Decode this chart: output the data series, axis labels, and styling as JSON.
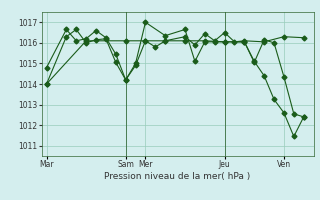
{
  "bg_color": "#d4eeee",
  "plot_bg_color": "#d4eeee",
  "line_color": "#1a5c1a",
  "grid_color": "#99ccbb",
  "xlabel": "Pression niveau de la mer( hPa )",
  "ylim": [
    1010.5,
    1017.5
  ],
  "yticks": [
    1011,
    1012,
    1013,
    1014,
    1015,
    1016,
    1017
  ],
  "series1_x": [
    0,
    2,
    3,
    4,
    5,
    6,
    7,
    8,
    9,
    10,
    11,
    12,
    14,
    15,
    16,
    17,
    18,
    19,
    20,
    22,
    24,
    26
  ],
  "series1_y": [
    1014.0,
    1016.3,
    1016.65,
    1016.0,
    1016.15,
    1016.2,
    1015.05,
    1014.2,
    1014.9,
    1016.1,
    1015.8,
    1016.1,
    1016.3,
    1015.9,
    1016.45,
    1016.1,
    1016.5,
    1016.05,
    1016.1,
    1016.05,
    1016.3,
    1016.25
  ],
  "series2_x": [
    0,
    2,
    3,
    4,
    5,
    6,
    7,
    8,
    9,
    10,
    12,
    14,
    15,
    16,
    17,
    18,
    20,
    21,
    22,
    23,
    24,
    25,
    26
  ],
  "series2_y": [
    1014.8,
    1016.65,
    1016.1,
    1016.2,
    1016.6,
    1016.25,
    1015.45,
    1014.2,
    1015.0,
    1017.0,
    1016.35,
    1016.65,
    1015.1,
    1016.05,
    1016.05,
    1016.05,
    1016.05,
    1015.05,
    1016.15,
    1016.0,
    1014.35,
    1012.55,
    1012.4
  ],
  "series3_x": [
    0,
    4,
    8,
    10,
    12,
    14,
    16,
    18,
    20,
    21,
    22,
    23,
    24,
    25,
    26
  ],
  "series3_y": [
    1014.0,
    1016.1,
    1016.1,
    1016.1,
    1016.1,
    1016.1,
    1016.1,
    1016.05,
    1016.05,
    1015.1,
    1014.4,
    1013.25,
    1012.6,
    1011.45,
    1012.4
  ],
  "vline_positions": [
    8,
    18
  ],
  "tick_label_positions": [
    0,
    8,
    10,
    18,
    24
  ],
  "tick_label_names": [
    "Mar",
    "Sam",
    "Mer",
    "Jeu",
    "Ven"
  ]
}
